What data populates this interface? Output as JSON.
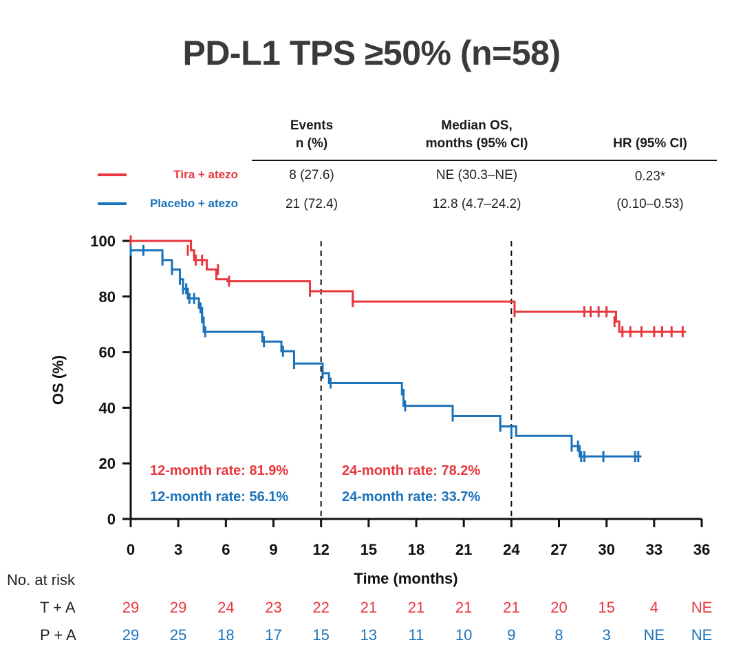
{
  "title": "PD-L1 TPS ≥50% (n=58)",
  "table": {
    "headers": {
      "events": [
        "Events",
        "n (%)"
      ],
      "median": [
        "Median OS,",
        "months (95% CI)"
      ],
      "hr": "HR (95% CI)"
    },
    "rows": [
      {
        "label": "Tira + atezo",
        "color": "#e8373d",
        "events": "8 (27.6)",
        "median": "NE (30.3–NE)",
        "hr": "0.23*"
      },
      {
        "label": "Placebo + atezo",
        "color": "#1a72bb",
        "events": "21 (72.4)",
        "median": "12.8 (4.7–24.2)",
        "hr": "(0.10–0.53)"
      }
    ]
  },
  "chart_data": {
    "type": "line",
    "subtype": "kaplan-meier step",
    "xlabel": "Time (months)",
    "ylabel": "OS (%)",
    "xlim": [
      0,
      36
    ],
    "ylim": [
      0,
      100
    ],
    "xticks": [
      0,
      3,
      6,
      9,
      12,
      15,
      18,
      21,
      24,
      27,
      30,
      33,
      36
    ],
    "yticks": [
      0,
      20,
      40,
      60,
      80,
      100
    ],
    "reference_lines_x": [
      12,
      24
    ],
    "series": [
      {
        "name": "Tira + atezo",
        "color": "#e8373d",
        "steps": [
          [
            0,
            100
          ],
          [
            3.8,
            96.6
          ],
          [
            4.0,
            93.1
          ],
          [
            4.8,
            89.7
          ],
          [
            5.4,
            86.2
          ],
          [
            6.1,
            85.5
          ],
          [
            11.3,
            81.9
          ],
          [
            14.0,
            78.2
          ],
          [
            24.2,
            74.5
          ],
          [
            30.6,
            71.0
          ],
          [
            30.8,
            67.3
          ],
          [
            35.0,
            67.3
          ]
        ],
        "censors": [
          [
            0,
            100
          ],
          [
            3.6,
            96.6
          ],
          [
            4.1,
            93.1
          ],
          [
            4.5,
            93.1
          ],
          [
            5.5,
            89.7
          ],
          [
            6.2,
            85.5
          ],
          [
            11.3,
            81.9
          ],
          [
            14.0,
            78.2
          ],
          [
            24.2,
            74.5
          ],
          [
            28.6,
            74.5
          ],
          [
            29.0,
            74.5
          ],
          [
            29.5,
            74.5
          ],
          [
            30.0,
            74.5
          ],
          [
            30.5,
            71.0
          ],
          [
            31.0,
            67.3
          ],
          [
            31.5,
            67.3
          ],
          [
            32.2,
            67.3
          ],
          [
            33.0,
            67.3
          ],
          [
            33.5,
            67.3
          ],
          [
            34.1,
            67.3
          ],
          [
            34.8,
            67.3
          ]
        ]
      },
      {
        "name": "Placebo + atezo",
        "color": "#1a72bb",
        "steps": [
          [
            0,
            96.6
          ],
          [
            2.0,
            93.1
          ],
          [
            2.6,
            89.7
          ],
          [
            3.1,
            86.2
          ],
          [
            3.3,
            82.8
          ],
          [
            3.6,
            79.3
          ],
          [
            4.3,
            75.9
          ],
          [
            4.5,
            72.4
          ],
          [
            4.6,
            67.3
          ],
          [
            8.3,
            63.8
          ],
          [
            9.5,
            60.3
          ],
          [
            10.3,
            55.9
          ],
          [
            12.1,
            52.4
          ],
          [
            12.5,
            48.9
          ],
          [
            17.1,
            44.8
          ],
          [
            17.2,
            40.7
          ],
          [
            20.3,
            37.0
          ],
          [
            23.3,
            33.3
          ],
          [
            24.3,
            29.9
          ],
          [
            27.8,
            26.2
          ],
          [
            28.3,
            22.5
          ],
          [
            32.2,
            22.5
          ]
        ],
        "censors": [
          [
            0,
            96.6
          ],
          [
            0.8,
            96.6
          ],
          [
            2.0,
            93.1
          ],
          [
            2.6,
            89.7
          ],
          [
            3.1,
            86.2
          ],
          [
            3.3,
            82.8
          ],
          [
            3.5,
            82.8
          ],
          [
            3.7,
            79.3
          ],
          [
            4.0,
            79.3
          ],
          [
            4.4,
            75.9
          ],
          [
            4.5,
            72.4
          ],
          [
            4.7,
            67.3
          ],
          [
            8.4,
            63.8
          ],
          [
            9.6,
            60.3
          ],
          [
            10.3,
            55.9
          ],
          [
            12.1,
            52.4
          ],
          [
            12.6,
            48.9
          ],
          [
            17.2,
            44.8
          ],
          [
            17.3,
            40.7
          ],
          [
            20.3,
            37.0
          ],
          [
            23.3,
            33.3
          ],
          [
            24.0,
            31.2
          ],
          [
            27.8,
            26.2
          ],
          [
            28.2,
            26.2
          ],
          [
            28.4,
            22.5
          ],
          [
            28.6,
            22.5
          ],
          [
            29.8,
            22.5
          ],
          [
            31.8,
            22.5
          ],
          [
            32.0,
            22.5
          ]
        ]
      }
    ],
    "annotations": [
      {
        "text": "12-month rate: 81.9%",
        "color": "#e8373d"
      },
      {
        "text": "24-month rate: 78.2%",
        "color": "#e8373d"
      },
      {
        "text": "12-month rate: 56.1%",
        "color": "#1a72bb"
      },
      {
        "text": "24-month rate: 33.7%",
        "color": "#1a72bb"
      }
    ]
  },
  "risk_table": {
    "title": "No. at risk",
    "rows": [
      {
        "label": "T + A",
        "color": "#e8373d",
        "values": [
          "29",
          "29",
          "24",
          "23",
          "22",
          "21",
          "21",
          "21",
          "21",
          "20",
          "15",
          "4",
          "NE"
        ]
      },
      {
        "label": "P + A",
        "color": "#1a72bb",
        "values": [
          "29",
          "25",
          "18",
          "17",
          "15",
          "13",
          "11",
          "10",
          "9",
          "8",
          "3",
          "NE",
          "NE"
        ]
      }
    ]
  }
}
